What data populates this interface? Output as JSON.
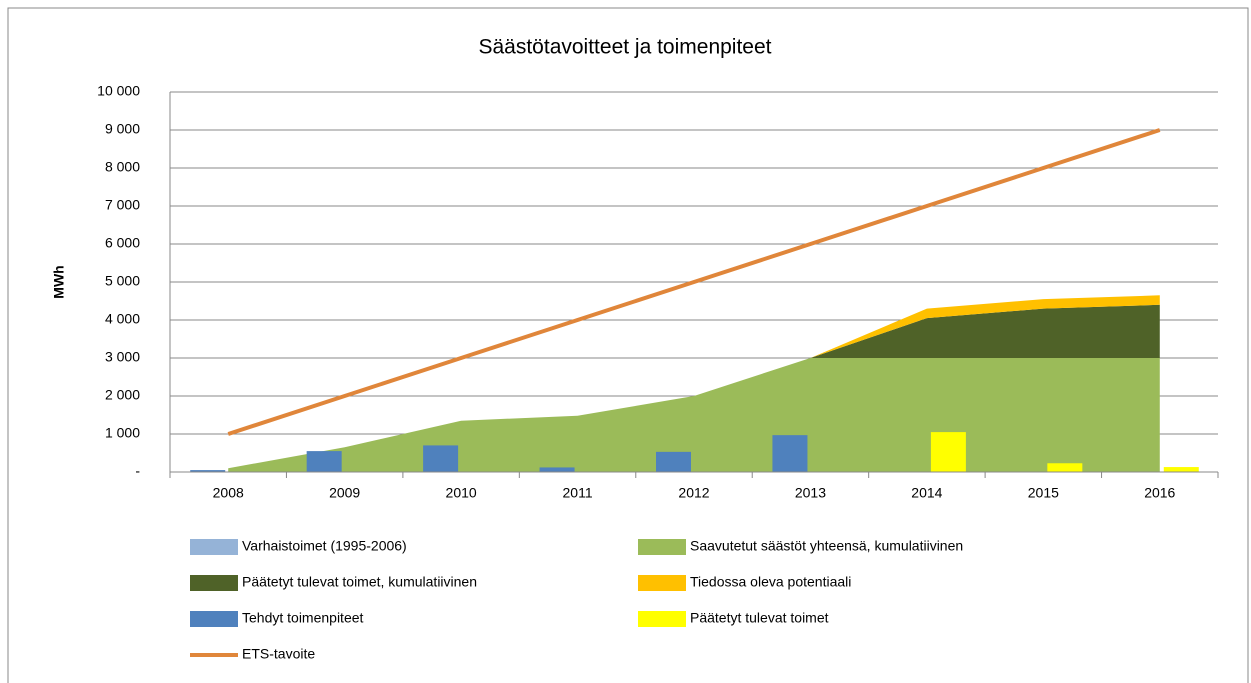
{
  "chart_data": {
    "type": "combo",
    "title": "Säästötavoitteet ja toimenpiteet",
    "y_label": "MWh",
    "categories": [
      "2008",
      "2009",
      "2010",
      "2011",
      "2012",
      "2013",
      "2014",
      "2015",
      "2016"
    ],
    "ylim": [
      0,
      10000
    ],
    "yticks": [
      {
        "value": 0,
        "label": "-"
      },
      {
        "value": 1000,
        "label": "1 000"
      },
      {
        "value": 2000,
        "label": "2 000"
      },
      {
        "value": 3000,
        "label": "3 000"
      },
      {
        "value": 4000,
        "label": "4 000"
      },
      {
        "value": 5000,
        "label": "5 000"
      },
      {
        "value": 6000,
        "label": "6 000"
      },
      {
        "value": 7000,
        "label": "7 000"
      },
      {
        "value": 8000,
        "label": "8 000"
      },
      {
        "value": 9000,
        "label": "9 000"
      },
      {
        "value": 10000,
        "label": "10 000"
      }
    ],
    "grid": true,
    "series": [
      {
        "name": "Varhaistoimet (1995-2006)",
        "type": "bar",
        "color": "#95b3d7",
        "values": [
          0,
          0,
          0,
          0,
          0,
          0,
          0,
          0,
          0
        ]
      },
      {
        "name": "Saavutetut säästöt yhteensä, kumulatiivinen",
        "type": "area",
        "color": "#9bbb59",
        "values": [
          100,
          650,
          1350,
          1480,
          2000,
          3000,
          3000,
          3000,
          3000
        ]
      },
      {
        "name": "Päätetyt tulevat toimet, kumulatiivinen",
        "type": "area",
        "color": "#4f6228",
        "values": [
          null,
          null,
          null,
          null,
          null,
          0,
          1050,
          1300,
          1400
        ]
      },
      {
        "name": "Tiedossa oleva potentiaali",
        "type": "area",
        "color": "#ffc000",
        "values": [
          null,
          null,
          null,
          null,
          null,
          0,
          250,
          250,
          250
        ]
      },
      {
        "name": "Tehdyt toimenpiteet",
        "type": "bar",
        "color": "#4f81bd",
        "values": [
          50,
          550,
          700,
          120,
          530,
          970,
          0,
          0,
          0
        ]
      },
      {
        "name": "Päätetyt tulevat toimet",
        "type": "bar",
        "color": "#ffff00",
        "values": [
          0,
          0,
          0,
          0,
          0,
          0,
          1050,
          230,
          130
        ]
      },
      {
        "name": "ETS-tavoite",
        "type": "line",
        "color": "#e0863a",
        "values": [
          1000,
          2000,
          3000,
          4000,
          5000,
          6000,
          7000,
          8000,
          9000
        ]
      }
    ]
  }
}
